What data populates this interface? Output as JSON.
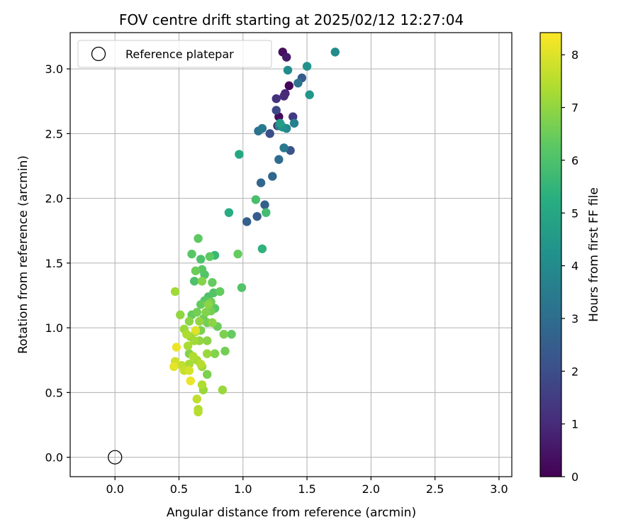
{
  "chart_data": {
    "type": "scatter",
    "title": "FOV centre drift starting at 2025/02/12 12:27:04",
    "xlabel": "Angular distance from reference (arcmin)",
    "ylabel": "Rotation from reference (arcmin)",
    "xlim": [
      -0.35,
      3.1
    ],
    "ylim": [
      -0.15,
      3.28
    ],
    "x_ticks": [
      "0.0",
      "0.5",
      "1.0",
      "1.5",
      "2.0",
      "2.5",
      "3.0"
    ],
    "y_ticks": [
      "0.0",
      "0.5",
      "1.0",
      "1.5",
      "2.0",
      "2.5",
      "3.0"
    ],
    "grid": true,
    "legend": {
      "location": "upper-left",
      "entries": [
        {
          "label": "Reference platepar"
        }
      ]
    },
    "reference_point": {
      "x": 0.0,
      "y": 0.0
    },
    "colorbar": {
      "label": "Hours from first FF file",
      "ticks": [
        "0",
        "1",
        "2",
        "3",
        "4",
        "5",
        "6",
        "7",
        "8"
      ],
      "range": [
        0,
        8.42
      ],
      "colormap": "viridis"
    },
    "series": [
      {
        "points": [
          {
            "x": 1.31,
            "y": 3.13,
            "h": 0.3
          },
          {
            "x": 1.34,
            "y": 3.09,
            "h": 0.6
          },
          {
            "x": 1.36,
            "y": 2.87,
            "h": 0.1
          },
          {
            "x": 1.33,
            "y": 2.81,
            "h": 0.9
          },
          {
            "x": 1.28,
            "y": 2.63,
            "h": 0.2
          },
          {
            "x": 1.27,
            "y": 2.56,
            "h": 0.6
          },
          {
            "x": 1.26,
            "y": 2.77,
            "h": 1.2
          },
          {
            "x": 1.32,
            "y": 2.79,
            "h": 1.0
          },
          {
            "x": 1.39,
            "y": 2.63,
            "h": 1.4
          },
          {
            "x": 1.26,
            "y": 2.68,
            "h": 1.8
          },
          {
            "x": 1.21,
            "y": 2.5,
            "h": 2.0
          },
          {
            "x": 1.37,
            "y": 2.37,
            "h": 2.2
          },
          {
            "x": 1.46,
            "y": 2.93,
            "h": 2.4
          },
          {
            "x": 1.43,
            "y": 2.89,
            "h": 3.2
          },
          {
            "x": 1.35,
            "y": 2.99,
            "h": 4.0
          },
          {
            "x": 1.5,
            "y": 3.02,
            "h": 4.2
          },
          {
            "x": 1.72,
            "y": 3.13,
            "h": 4.0
          },
          {
            "x": 1.52,
            "y": 2.8,
            "h": 4.4
          },
          {
            "x": 1.4,
            "y": 2.58,
            "h": 3.6
          },
          {
            "x": 1.32,
            "y": 2.39,
            "h": 3.4
          },
          {
            "x": 1.28,
            "y": 2.3,
            "h": 3.0
          },
          {
            "x": 1.23,
            "y": 2.17,
            "h": 2.8
          },
          {
            "x": 1.17,
            "y": 1.95,
            "h": 2.6
          },
          {
            "x": 1.14,
            "y": 2.12,
            "h": 2.8
          },
          {
            "x": 1.11,
            "y": 1.86,
            "h": 2.4
          },
          {
            "x": 1.03,
            "y": 1.82,
            "h": 2.6
          },
          {
            "x": 1.12,
            "y": 2.52,
            "h": 3.2
          },
          {
            "x": 1.15,
            "y": 2.54,
            "h": 3.4
          },
          {
            "x": 1.28,
            "y": 2.56,
            "h": 3.6
          },
          {
            "x": 1.31,
            "y": 2.55,
            "h": 4.2
          },
          {
            "x": 1.34,
            "y": 2.54,
            "h": 3.9
          },
          {
            "x": 1.29,
            "y": 2.58,
            "h": 4.6
          },
          {
            "x": 0.97,
            "y": 2.34,
            "h": 5.0
          },
          {
            "x": 0.89,
            "y": 1.89,
            "h": 5.2
          },
          {
            "x": 1.18,
            "y": 1.89,
            "h": 5.8
          },
          {
            "x": 1.1,
            "y": 1.99,
            "h": 5.9
          },
          {
            "x": 1.15,
            "y": 1.61,
            "h": 5.4
          },
          {
            "x": 0.99,
            "y": 1.31,
            "h": 6.1
          },
          {
            "x": 0.96,
            "y": 1.57,
            "h": 6.4
          },
          {
            "x": 0.78,
            "y": 1.56,
            "h": 5.6
          },
          {
            "x": 0.74,
            "y": 1.55,
            "h": 6.3
          },
          {
            "x": 0.6,
            "y": 1.57,
            "h": 6.2
          },
          {
            "x": 0.65,
            "y": 1.69,
            "h": 6.3
          },
          {
            "x": 0.67,
            "y": 1.53,
            "h": 6.0
          },
          {
            "x": 0.63,
            "y": 1.44,
            "h": 6.5
          },
          {
            "x": 0.68,
            "y": 1.45,
            "h": 6.2
          },
          {
            "x": 0.7,
            "y": 1.41,
            "h": 6.1
          },
          {
            "x": 0.62,
            "y": 1.36,
            "h": 6.0
          },
          {
            "x": 0.68,
            "y": 1.36,
            "h": 6.8
          },
          {
            "x": 0.76,
            "y": 1.35,
            "h": 6.4
          },
          {
            "x": 0.73,
            "y": 1.24,
            "h": 6.0
          },
          {
            "x": 0.77,
            "y": 1.27,
            "h": 6.1
          },
          {
            "x": 0.82,
            "y": 1.28,
            "h": 6.4
          },
          {
            "x": 0.7,
            "y": 1.21,
            "h": 6.2
          },
          {
            "x": 0.67,
            "y": 1.18,
            "h": 6.4
          },
          {
            "x": 0.75,
            "y": 1.2,
            "h": 6.6
          },
          {
            "x": 0.73,
            "y": 1.18,
            "h": 6.9
          },
          {
            "x": 0.78,
            "y": 1.15,
            "h": 6.2
          },
          {
            "x": 0.75,
            "y": 1.13,
            "h": 6.6
          },
          {
            "x": 0.71,
            "y": 1.12,
            "h": 6.8
          },
          {
            "x": 0.69,
            "y": 1.07,
            "h": 6.5
          },
          {
            "x": 0.64,
            "y": 1.12,
            "h": 6.6
          },
          {
            "x": 0.6,
            "y": 1.1,
            "h": 6.4
          },
          {
            "x": 0.66,
            "y": 1.05,
            "h": 7.0
          },
          {
            "x": 0.72,
            "y": 1.04,
            "h": 6.6
          },
          {
            "x": 0.76,
            "y": 1.04,
            "h": 6.9
          },
          {
            "x": 0.8,
            "y": 1.01,
            "h": 6.5
          },
          {
            "x": 0.85,
            "y": 0.95,
            "h": 6.7
          },
          {
            "x": 0.91,
            "y": 0.95,
            "h": 6.4
          },
          {
            "x": 0.67,
            "y": 0.98,
            "h": 6.7
          },
          {
            "x": 0.63,
            "y": 0.97,
            "h": 7.2
          },
          {
            "x": 0.54,
            "y": 0.99,
            "h": 7.1
          },
          {
            "x": 0.56,
            "y": 0.95,
            "h": 7.4
          },
          {
            "x": 0.59,
            "y": 0.93,
            "h": 7.2
          },
          {
            "x": 0.63,
            "y": 0.98,
            "h": 8.0
          },
          {
            "x": 0.62,
            "y": 0.9,
            "h": 7.2
          },
          {
            "x": 0.66,
            "y": 0.9,
            "h": 7.0
          },
          {
            "x": 0.72,
            "y": 0.9,
            "h": 6.9
          },
          {
            "x": 0.57,
            "y": 0.86,
            "h": 7.3
          },
          {
            "x": 0.48,
            "y": 0.85,
            "h": 8.2
          },
          {
            "x": 0.58,
            "y": 0.8,
            "h": 6.8
          },
          {
            "x": 0.72,
            "y": 0.8,
            "h": 7.1
          },
          {
            "x": 0.78,
            "y": 0.8,
            "h": 6.8
          },
          {
            "x": 0.86,
            "y": 0.82,
            "h": 6.6
          },
          {
            "x": 0.61,
            "y": 0.78,
            "h": 7.4
          },
          {
            "x": 0.64,
            "y": 0.75,
            "h": 7.3
          },
          {
            "x": 0.47,
            "y": 0.74,
            "h": 7.8
          },
          {
            "x": 0.52,
            "y": 0.71,
            "h": 7.6
          },
          {
            "x": 0.46,
            "y": 0.7,
            "h": 8.1
          },
          {
            "x": 0.54,
            "y": 0.67,
            "h": 7.7
          },
          {
            "x": 0.58,
            "y": 0.67,
            "h": 7.9
          },
          {
            "x": 0.58,
            "y": 0.72,
            "h": 7.3
          },
          {
            "x": 0.67,
            "y": 0.72,
            "h": 7.5
          },
          {
            "x": 0.68,
            "y": 0.7,
            "h": 7.2
          },
          {
            "x": 0.72,
            "y": 0.64,
            "h": 6.7
          },
          {
            "x": 0.59,
            "y": 0.59,
            "h": 8.2
          },
          {
            "x": 0.68,
            "y": 0.56,
            "h": 7.4
          },
          {
            "x": 0.69,
            "y": 0.52,
            "h": 7.1
          },
          {
            "x": 0.84,
            "y": 0.52,
            "h": 7.1
          },
          {
            "x": 0.64,
            "y": 0.45,
            "h": 7.6
          },
          {
            "x": 0.65,
            "y": 0.37,
            "h": 7.4
          },
          {
            "x": 0.65,
            "y": 0.35,
            "h": 7.5
          },
          {
            "x": 0.47,
            "y": 1.28,
            "h": 7.2
          },
          {
            "x": 0.51,
            "y": 1.1,
            "h": 7.0
          },
          {
            "x": 0.58,
            "y": 1.05,
            "h": 6.9
          }
        ]
      }
    ]
  }
}
